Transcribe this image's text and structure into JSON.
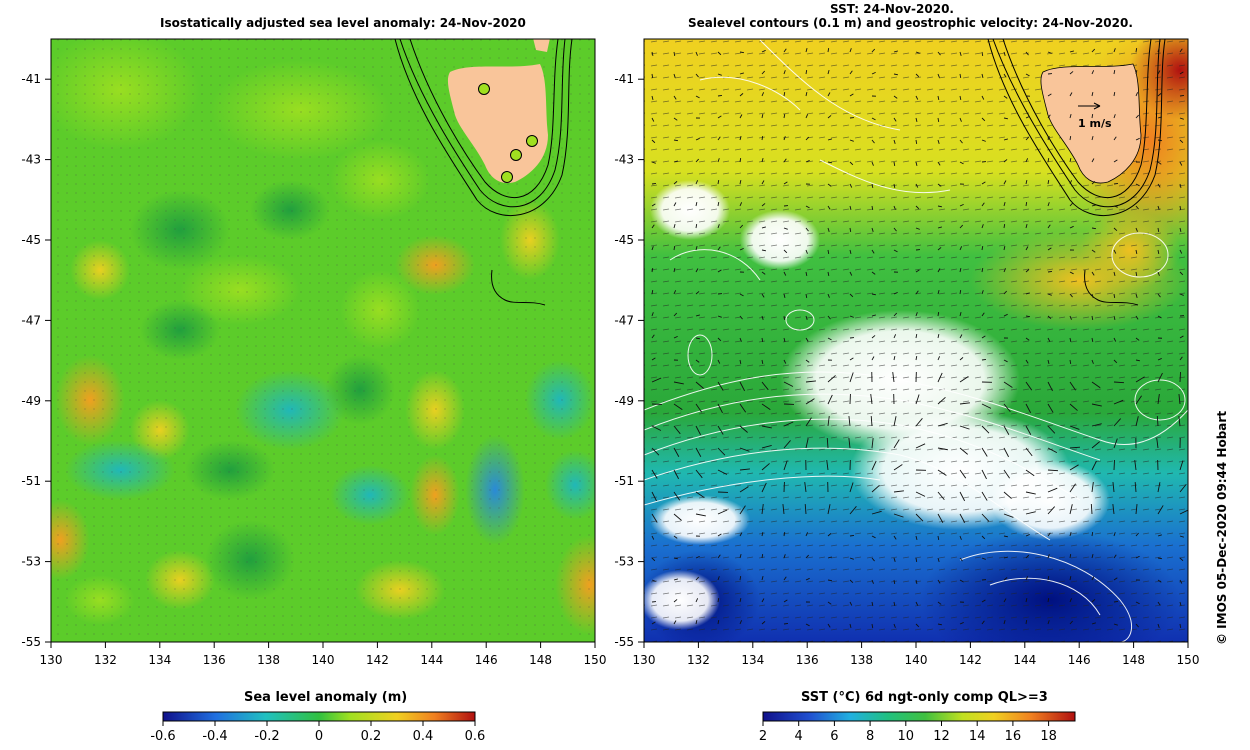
{
  "left_panel": {
    "title": "Isostatically adjusted sea level anomaly: 24-Nov-2020",
    "x_ticks": [
      "130",
      "132",
      "134",
      "136",
      "138",
      "140",
      "142",
      "144",
      "146",
      "148",
      "150"
    ],
    "y_ticks": [
      "-41",
      "-43",
      "-45",
      "-47",
      "-49",
      "-51",
      "-53",
      "-55"
    ],
    "colorbar": {
      "label": "Sea level anomaly (m)",
      "ticks": [
        "-0.6",
        "-0.4",
        "-0.2",
        "0",
        "0.2",
        "0.4",
        "0.6"
      ]
    }
  },
  "right_panel": {
    "title_line1": "SST: 24-Nov-2020.",
    "title_line2": "Sealevel contours (0.1 m) and geostrophic velocity: 24-Nov-2020.",
    "x_ticks": [
      "130",
      "132",
      "134",
      "136",
      "138",
      "140",
      "142",
      "144",
      "146",
      "148",
      "150"
    ],
    "y_ticks": [
      "-41",
      "-43",
      "-45",
      "-47",
      "-49",
      "-51",
      "-53",
      "-55"
    ],
    "scale_label": "1 m/s",
    "colorbar": {
      "label": "SST (°C) 6d ngt-only comp QL>=3",
      "ticks": [
        "2",
        "4",
        "6",
        "8",
        "10",
        "12",
        "14",
        "16",
        "18"
      ]
    }
  },
  "credit": "© IMOS 05-Dec-2020 09:44 Hobart",
  "colors": {
    "land": "#f9c59a",
    "white": "#ffffff"
  }
}
